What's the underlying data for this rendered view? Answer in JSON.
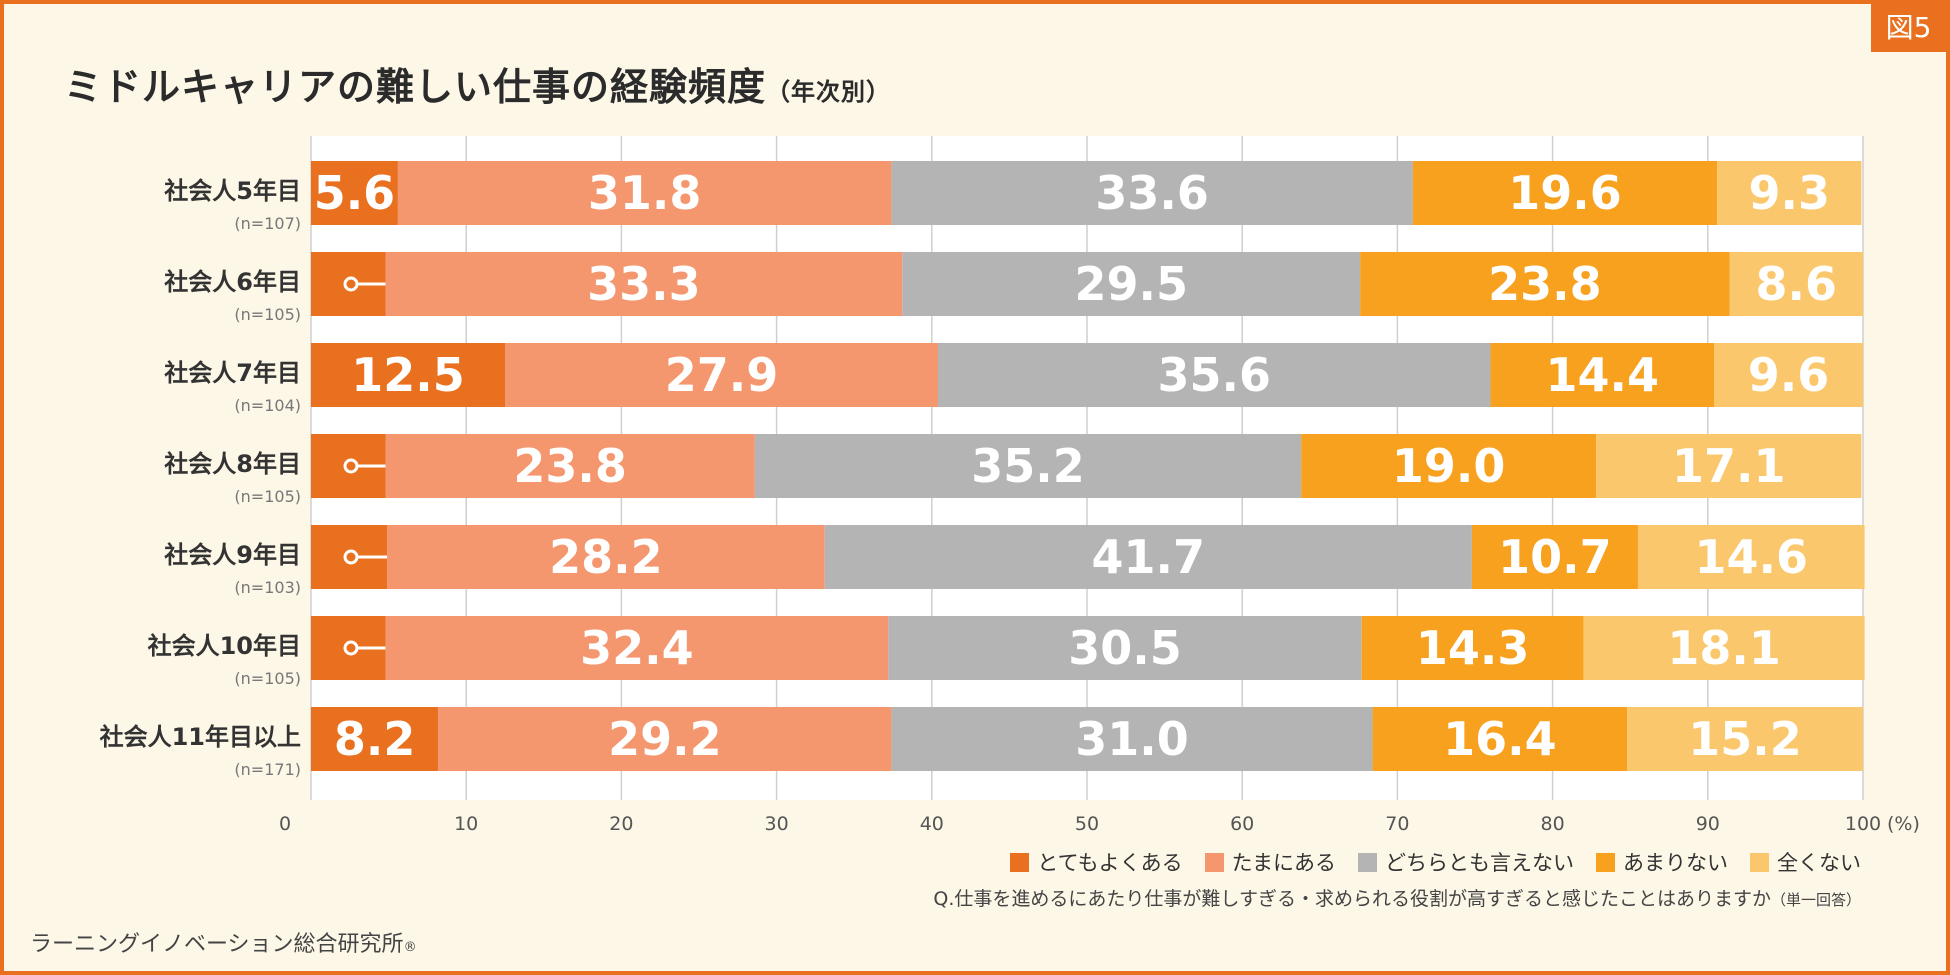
{
  "badge": "図5",
  "title_main": "ミドルキャリアの難しい仕事の経験頻度",
  "title_sub": "（年次別）",
  "chart_data": {
    "type": "bar",
    "orientation": "horizontal",
    "stacked": true,
    "title": "ミドルキャリアの難しい仕事の経験頻度（年次別）",
    "categories": [
      "社会人5年目",
      "社会人6年目",
      "社会人7年目",
      "社会人8年目",
      "社会人9年目",
      "社会人10年目",
      "社会人11年目以上"
    ],
    "sample_sizes": [
      "(n=107)",
      "(n=105)",
      "(n=104)",
      "(n=105)",
      "(n=103)",
      "(n=105)",
      "(n=171)"
    ],
    "series": [
      {
        "name": "とてもよくある",
        "color": "#e8701e",
        "values": [
          5.6,
          4.8,
          12.5,
          4.8,
          4.9,
          4.8,
          8.2
        ]
      },
      {
        "name": "たまにある",
        "color": "#f4976f",
        "values": [
          31.8,
          33.3,
          27.9,
          23.8,
          28.2,
          32.4,
          29.2
        ]
      },
      {
        "name": "どちらとも言えない",
        "color": "#b4b4b4",
        "values": [
          33.6,
          29.5,
          35.6,
          35.2,
          41.7,
          30.5,
          31.0
        ]
      },
      {
        "name": "あまりない",
        "color": "#f7a11f",
        "values": [
          19.6,
          23.8,
          14.4,
          19.0,
          10.7,
          14.3,
          16.4
        ]
      },
      {
        "name": "全くない",
        "color": "#fbc76c",
        "values": [
          9.3,
          8.6,
          9.6,
          17.1,
          14.6,
          18.1,
          15.2
        ]
      }
    ],
    "xlim": [
      0,
      100
    ],
    "xticks": [
      "0",
      "10",
      "20",
      "30",
      "40",
      "50",
      "60",
      "70",
      "80",
      "90",
      "100"
    ],
    "xlabel_unit": "(%)",
    "grid": true,
    "legend_position": "bottom-right"
  },
  "question": "Q.仕事を進めるにあたり仕事が難しすぎる・求められる役割が高すぎると感じたことはありますか",
  "question_note": "（単一回答）",
  "org_name": "ラーニングイノベーション総合研究所",
  "org_mark": "®"
}
